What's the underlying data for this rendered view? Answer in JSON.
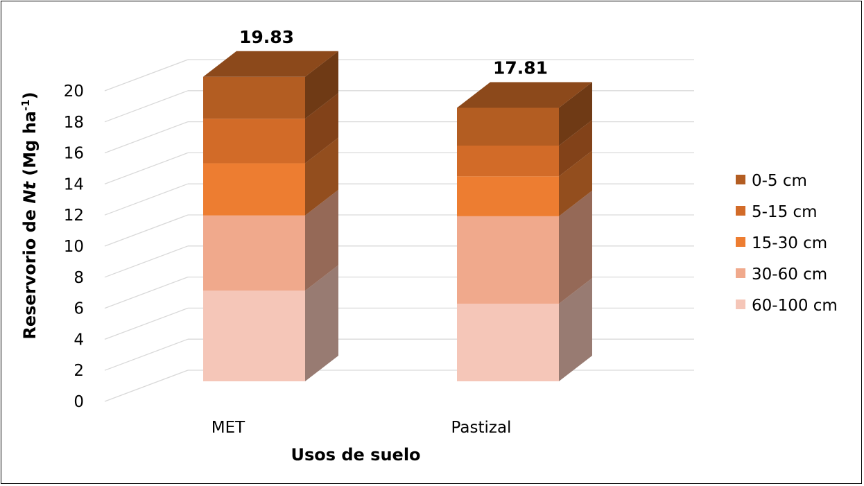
{
  "chart_data": {
    "type": "bar",
    "stacked": true,
    "three_d": true,
    "categories": [
      "MET",
      "Pastizal"
    ],
    "totals": [
      "19.83",
      "17.81"
    ],
    "series": [
      {
        "name": "60-100 cm",
        "values": [
          5.9,
          5.05
        ],
        "color": "#f5c6b8"
      },
      {
        "name": "30-60 cm",
        "values": [
          4.9,
          5.7
        ],
        "color": "#f0a98c"
      },
      {
        "name": "15-30 cm",
        "values": [
          3.4,
          2.6
        ],
        "color": "#ed7d31"
      },
      {
        "name": "5-15 cm",
        "values": [
          2.9,
          2.0
        ],
        "color": "#d26b28"
      },
      {
        "name": "0-5 cm",
        "values": [
          2.73,
          2.46
        ],
        "color": "#b35d22"
      }
    ],
    "legend_order": [
      "0-5 cm",
      "5-15 cm",
      "15-30 cm",
      "30-60 cm",
      "60-100 cm"
    ],
    "xlabel": "Usos de suelo",
    "ylabel": {
      "prefix": "Reservorio de ",
      "italic": "Nt",
      "unit": " (Mg ha",
      "sup": "-1",
      "close": ")"
    },
    "yticks": [
      "0",
      "2",
      "4",
      "6",
      "8",
      "10",
      "12",
      "14",
      "16",
      "18",
      "20"
    ],
    "ylim": [
      0,
      20
    ],
    "grid": true,
    "legend_position": "right"
  }
}
